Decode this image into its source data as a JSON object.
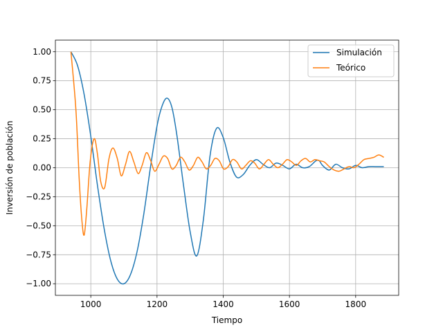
{
  "chart_data": {
    "type": "line",
    "title": "",
    "xlabel": "Tiempo",
    "ylabel": "Inversión de población",
    "xlim": [
      893,
      1930
    ],
    "ylim": [
      -1.1,
      1.1
    ],
    "xticks": [
      1000,
      1200,
      1400,
      1600,
      1800
    ],
    "yticks": [
      -1.0,
      -0.75,
      -0.5,
      -0.25,
      0.0,
      0.25,
      0.5,
      0.75,
      1.0
    ],
    "xtick_labels": [
      "1000",
      "1200",
      "1400",
      "1600",
      "1800"
    ],
    "ytick_labels": [
      "−1.00",
      "−0.75",
      "−0.50",
      "−0.25",
      "0.00",
      "0.25",
      "0.50",
      "0.75",
      "1.00"
    ],
    "grid": true,
    "legend_position": "top-right",
    "series": [
      {
        "name": "Simulación",
        "color": "#1f77b4",
        "x": [
          940,
          960,
          980,
          1000,
          1020,
          1040,
          1060,
          1080,
          1100,
          1120,
          1140,
          1160,
          1180,
          1200,
          1215,
          1230,
          1245,
          1260,
          1280,
          1300,
          1320,
          1340,
          1360,
          1380,
          1400,
          1420,
          1440,
          1460,
          1480,
          1500,
          1520,
          1540,
          1560,
          1580,
          1600,
          1620,
          1640,
          1660,
          1680,
          1690,
          1700,
          1720,
          1740,
          1760,
          1780,
          1800,
          1820,
          1840,
          1860,
          1885
        ],
        "y": [
          1.0,
          0.88,
          0.63,
          0.27,
          -0.15,
          -0.52,
          -0.8,
          -0.96,
          -1.0,
          -0.92,
          -0.72,
          -0.4,
          0.0,
          0.36,
          0.53,
          0.6,
          0.52,
          0.28,
          -0.15,
          -0.55,
          -0.76,
          -0.45,
          0.1,
          0.34,
          0.26,
          0.05,
          -0.08,
          -0.06,
          0.02,
          0.07,
          0.03,
          0.0,
          0.04,
          0.02,
          -0.01,
          0.03,
          0.0,
          0.01,
          0.06,
          0.06,
          0.02,
          -0.02,
          0.03,
          0.0,
          -0.01,
          0.02,
          0.0,
          0.01,
          0.01,
          0.01
        ]
      },
      {
        "name": "Teórico",
        "color": "#ff7f0e",
        "x": [
          940,
          955,
          965,
          973,
          980,
          988,
          998,
          1010,
          1020,
          1030,
          1042,
          1055,
          1067,
          1080,
          1092,
          1105,
          1117,
          1130,
          1143,
          1155,
          1168,
          1181,
          1193,
          1206,
          1219,
          1232,
          1245,
          1258,
          1271,
          1284,
          1297,
          1310,
          1323,
          1336,
          1349,
          1362,
          1375,
          1388,
          1401,
          1415,
          1428,
          1441,
          1455,
          1468,
          1482,
          1495,
          1509,
          1523,
          1537,
          1551,
          1565,
          1579,
          1593,
          1607,
          1621,
          1635,
          1649,
          1663,
          1677,
          1691,
          1705,
          1720,
          1735,
          1750,
          1765,
          1780,
          1795,
          1810,
          1825,
          1840,
          1855,
          1870,
          1885
        ],
        "y": [
          1.0,
          0.5,
          -0.1,
          -0.45,
          -0.58,
          -0.35,
          0.05,
          0.25,
          0.12,
          -0.12,
          -0.17,
          0.08,
          0.17,
          0.08,
          -0.07,
          0.03,
          0.14,
          0.05,
          -0.05,
          0.02,
          0.13,
          0.06,
          -0.03,
          0.03,
          0.1,
          0.08,
          -0.01,
          0.02,
          0.09,
          0.05,
          -0.02,
          0.02,
          0.09,
          0.05,
          -0.01,
          0.02,
          0.08,
          0.06,
          -0.01,
          0.01,
          0.07,
          0.05,
          -0.01,
          0.02,
          0.06,
          0.04,
          -0.01,
          0.03,
          0.07,
          0.03,
          0.0,
          0.03,
          0.07,
          0.05,
          0.02,
          0.06,
          0.08,
          0.05,
          0.07,
          0.06,
          0.05,
          0.01,
          -0.02,
          -0.03,
          -0.01,
          0.01,
          0.0,
          0.03,
          0.07,
          0.08,
          0.09,
          0.11,
          0.09
        ]
      }
    ]
  }
}
